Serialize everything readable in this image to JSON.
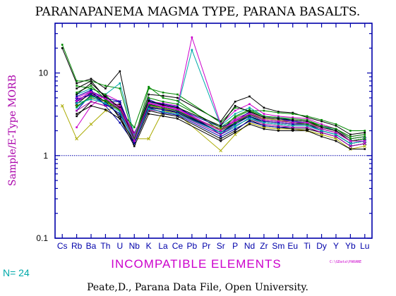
{
  "chart_data": {
    "type": "line",
    "title": "PARANAPANEMA MAGMA TYPE, PARANA BASALTS.",
    "xlabel": "INCOMPATIBLE ELEMENTS",
    "ylabel": "Sample/E-Type MORB",
    "yscale": "log",
    "ylim": [
      0.1,
      40
    ],
    "yticks": [
      "10",
      "1",
      "0.1"
    ],
    "reference_line": 1,
    "categories": [
      "Cs",
      "Rb",
      "Ba",
      "Th",
      "U",
      "Nb",
      "K",
      "La",
      "Ce",
      "Pb",
      "Pr",
      "Sr",
      "P",
      "Nd",
      "Zr",
      "Sm",
      "Eu",
      "Ti",
      "Dy",
      "Y",
      "Yb",
      "Lu"
    ],
    "n_label": "N= 24",
    "small_label": "C:\\GData\\PARANE",
    "footer": "Peate,D., Parana Data File, Open University.",
    "colors": {
      "title": "#000000",
      "axes": "#0000aa",
      "ylabel": "#aa00aa",
      "xlabel": "#cc00cc",
      "n_label": "#00aaaa",
      "small_label": "#cc00cc"
    },
    "series": [
      {
        "color": "#000000",
        "values": [
          20,
          7.5,
          8.5,
          6.5,
          10.5,
          1.6,
          5.5,
          5.3,
          5.0,
          null,
          null,
          2.6,
          4.5,
          5.2,
          3.8,
          3.4,
          3.3,
          2.9,
          2.6,
          2.3,
          1.8,
          1.9
        ]
      },
      {
        "color": "#008800",
        "values": [
          22,
          8,
          8,
          7,
          6.5,
          1.6,
          6.5,
          5.8,
          5.5,
          null,
          null,
          2.5,
          3.8,
          3.5,
          3.5,
          3.3,
          3.2,
          3.0,
          2.7,
          2.4,
          2.0,
          2.0
        ]
      },
      {
        "color": "#cc00cc",
        "values": [
          null,
          2.2,
          4.0,
          5.5,
          4.5,
          1.7,
          4.5,
          4.3,
          4.0,
          27,
          null,
          2.4,
          3.5,
          4.2,
          3.2,
          3.0,
          2.9,
          2.8,
          2.4,
          2.1,
          1.7,
          1.8
        ]
      },
      {
        "color": "#00aaaa",
        "values": [
          null,
          5.5,
          6.5,
          5.5,
          7.5,
          1.8,
          4.5,
          4.0,
          3.8,
          19,
          null,
          2.3,
          3.2,
          3.8,
          3.0,
          2.9,
          2.7,
          2.6,
          2.3,
          2.0,
          1.6,
          1.7
        ]
      },
      {
        "color": "#aaaa00",
        "values": [
          4,
          1.6,
          2.4,
          3.5,
          4.0,
          1.6,
          1.6,
          3.5,
          3.2,
          null,
          null,
          1.15,
          1.8,
          2.5,
          2.2,
          2.1,
          2.1,
          2.0,
          1.8,
          1.6,
          1.2,
          1.3
        ]
      },
      {
        "color": "#0000aa",
        "values": [
          null,
          3.5,
          5.5,
          4.5,
          4.5,
          1.4,
          4.5,
          4.2,
          3.9,
          null,
          null,
          1.8,
          2.5,
          3.2,
          2.7,
          2.6,
          2.5,
          2.4,
          2.1,
          1.9,
          1.5,
          1.6
        ]
      },
      {
        "color": "#000000",
        "values": [
          null,
          3,
          4.5,
          4.0,
          4.2,
          1.5,
          3.8,
          3.6,
          3.3,
          null,
          null,
          1.9,
          2.4,
          3.0,
          2.5,
          2.4,
          2.3,
          2.3,
          2.0,
          1.8,
          1.4,
          1.5
        ]
      },
      {
        "color": "#aa00aa",
        "values": [
          null,
          4.5,
          5.5,
          5.0,
          3.6,
          1.9,
          4.0,
          3.7,
          3.4,
          null,
          null,
          2.1,
          2.8,
          3.3,
          2.8,
          2.7,
          2.6,
          2.5,
          2.2,
          2.0,
          1.6,
          1.7
        ]
      },
      {
        "color": "#008800",
        "values": [
          null,
          7,
          6.5,
          5.5,
          3.5,
          2.2,
          6.8,
          5.0,
          4.6,
          null,
          null,
          2.0,
          3.0,
          3.6,
          3.0,
          2.9,
          2.8,
          2.7,
          2.3,
          2.1,
          1.7,
          1.8
        ]
      },
      {
        "color": "#0000aa",
        "values": [
          null,
          4.5,
          6.0,
          5.0,
          4.5,
          1.6,
          4.8,
          4.0,
          3.7,
          null,
          null,
          2.2,
          2.6,
          3.4,
          2.9,
          2.8,
          2.6,
          2.5,
          2.2,
          2.0,
          1.5,
          1.6
        ]
      },
      {
        "color": "#000000",
        "values": [
          null,
          6.5,
          8.0,
          5.0,
          2.8,
          1.5,
          4.2,
          3.8,
          3.5,
          null,
          null,
          1.9,
          2.5,
          3.0,
          2.6,
          2.5,
          2.4,
          2.4,
          2.1,
          1.9,
          1.5,
          1.5
        ]
      },
      {
        "color": "#888800",
        "values": [
          null,
          4.0,
          5.0,
          4.5,
          3.5,
          1.6,
          4.0,
          3.7,
          3.4,
          null,
          null,
          2.1,
          2.6,
          3.2,
          2.8,
          2.7,
          2.5,
          2.5,
          2.2,
          2.0,
          1.5,
          1.6
        ]
      },
      {
        "color": "#00aaaa",
        "values": [
          null,
          3.8,
          5.2,
          4.2,
          3.2,
          1.5,
          3.6,
          3.4,
          3.2,
          null,
          null,
          1.8,
          2.2,
          2.9,
          2.5,
          2.4,
          2.3,
          2.3,
          2.0,
          1.8,
          1.4,
          1.5
        ]
      },
      {
        "color": "#cc00cc",
        "values": [
          null,
          5.0,
          6.0,
          4.8,
          4.0,
          1.7,
          4.4,
          4.0,
          3.7,
          null,
          null,
          2.0,
          2.6,
          3.1,
          2.7,
          2.6,
          2.5,
          2.5,
          2.1,
          1.9,
          1.5,
          1.6
        ]
      },
      {
        "color": "#000000",
        "values": [
          null,
          4.2,
          5.8,
          4.5,
          3.0,
          1.4,
          3.5,
          3.2,
          3.0,
          null,
          null,
          1.6,
          2.0,
          2.7,
          2.3,
          2.2,
          2.1,
          2.1,
          1.9,
          1.7,
          1.3,
          1.4
        ]
      },
      {
        "color": "#0000aa",
        "values": [
          null,
          5.2,
          6.2,
          4.0,
          2.5,
          1.4,
          3.8,
          3.3,
          3.1,
          null,
          null,
          1.7,
          2.1,
          2.6,
          2.3,
          2.2,
          2.2,
          2.2,
          1.9,
          1.7,
          1.3,
          1.4
        ]
      },
      {
        "color": "#008800",
        "values": [
          null,
          5.8,
          7.0,
          4.8,
          3.5,
          1.6,
          5.0,
          4.5,
          4.2,
          null,
          null,
          2.2,
          2.9,
          3.5,
          2.9,
          2.8,
          2.7,
          2.6,
          2.3,
          2.1,
          1.6,
          1.7
        ]
      },
      {
        "color": "#000000",
        "values": [
          null,
          3.2,
          4.0,
          3.6,
          2.8,
          1.3,
          3.2,
          3.0,
          2.8,
          null,
          null,
          1.5,
          1.9,
          2.4,
          2.1,
          2.0,
          2.0,
          2.0,
          1.7,
          1.5,
          1.2,
          1.2
        ]
      },
      {
        "color": "#aa00aa",
        "values": [
          null,
          3.5,
          4.5,
          4.0,
          3.8,
          1.5,
          3.6,
          3.4,
          3.2,
          null,
          null,
          1.8,
          2.3,
          2.8,
          2.4,
          2.3,
          2.2,
          2.2,
          1.9,
          1.7,
          1.3,
          1.4
        ]
      },
      {
        "color": "#0000aa",
        "values": [
          null,
          4.8,
          5.5,
          4.2,
          3.2,
          1.6,
          3.9,
          3.6,
          3.4,
          null,
          null,
          1.9,
          2.4,
          3.0,
          2.6,
          2.5,
          2.4,
          2.4,
          2.0,
          1.8,
          1.4,
          1.5
        ]
      },
      {
        "color": "#000000",
        "values": [
          null,
          5.5,
          7.5,
          5.2,
          3.8,
          1.5,
          4.6,
          4.1,
          3.8,
          null,
          null,
          2.3,
          4.0,
          3.4,
          2.9,
          2.8,
          2.7,
          2.6,
          2.2,
          2.0,
          1.5,
          1.6
        ]
      },
      {
        "color": "#00aaaa",
        "values": [
          null,
          4.3,
          4.8,
          4.3,
          3.4,
          1.5,
          3.7,
          3.4,
          3.2,
          null,
          null,
          1.9,
          2.3,
          2.8,
          2.5,
          2.4,
          2.3,
          2.3,
          2.0,
          1.8,
          1.4,
          1.5
        ]
      },
      {
        "color": "#008800",
        "values": [
          null,
          3.9,
          5.3,
          4.6,
          3.6,
          1.6,
          4.1,
          3.8,
          3.5,
          null,
          null,
          2.0,
          2.5,
          3.1,
          2.7,
          2.6,
          2.5,
          2.4,
          2.1,
          1.9,
          1.5,
          1.6
        ]
      },
      {
        "color": "#cc00cc",
        "values": [
          null,
          4.6,
          5.9,
          4.9,
          3.7,
          1.5,
          4.3,
          3.9,
          3.6,
          null,
          null,
          2.0,
          2.7,
          3.2,
          2.7,
          2.6,
          2.5,
          2.5,
          2.1,
          1.9,
          1.5,
          1.5
        ]
      }
    ]
  }
}
